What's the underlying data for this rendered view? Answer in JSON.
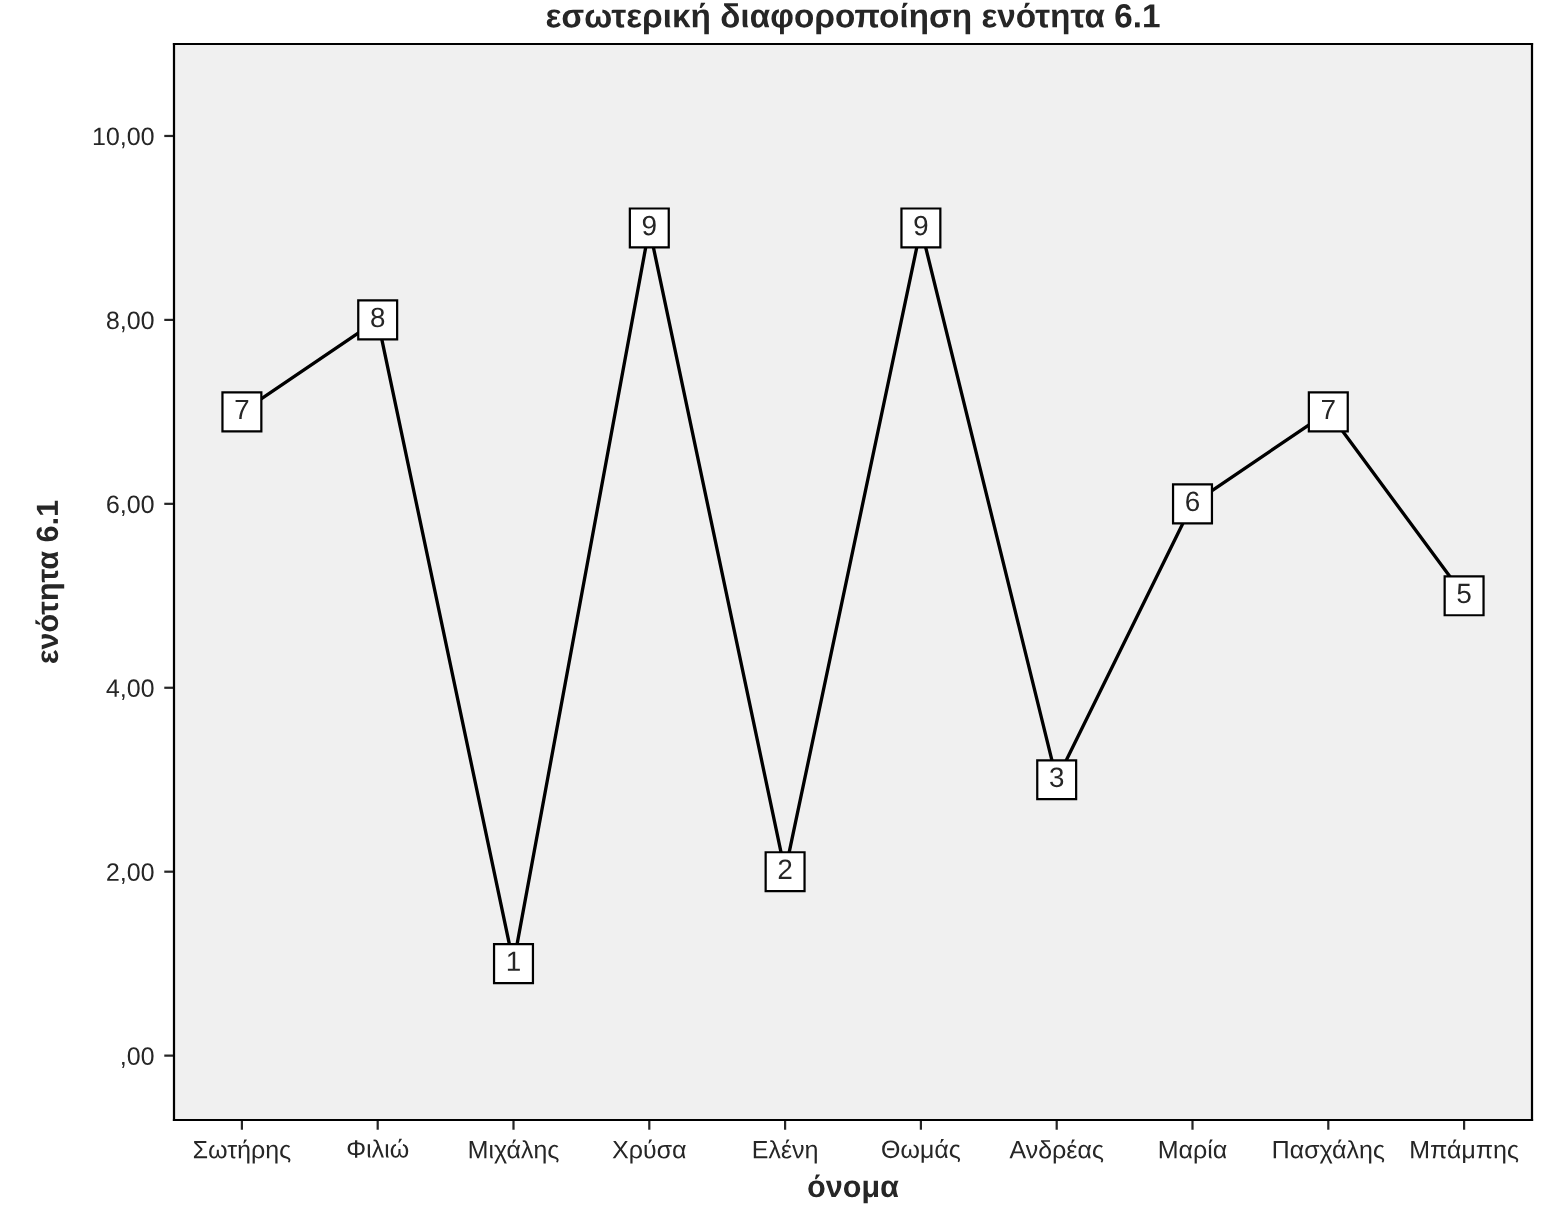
{
  "chart_data": {
    "type": "line",
    "title": "εσωτερική διαφοροποίηση ενότητα 6.1",
    "xlabel": "όνομα",
    "ylabel": "ενότητα 6.1",
    "categories": [
      "Σωτήρης",
      "Φιλιώ",
      "Μιχάλης",
      "Χρύσα",
      "Ελένη",
      "Θωμάς",
      "Ανδρέας",
      "Μαρία",
      "Πασχάλης",
      "Μπάμπης"
    ],
    "series": [
      {
        "color": "#000000",
        "values": [
          7,
          8,
          1,
          9,
          2,
          9,
          3,
          6,
          7,
          5
        ]
      }
    ],
    "ylim": [
      -0.7,
      11
    ],
    "yticks": [
      {
        "value": 0,
        "label": ",00"
      },
      {
        "value": 2,
        "label": "2,00"
      },
      {
        "value": 4,
        "label": "4,00"
      },
      {
        "value": 6,
        "label": "6,00"
      },
      {
        "value": 8,
        "label": "8,00"
      },
      {
        "value": 10,
        "label": "10,00"
      }
    ],
    "data_labels": true,
    "grid": false,
    "legend": false,
    "marker": "square",
    "line_style": "solid"
  }
}
